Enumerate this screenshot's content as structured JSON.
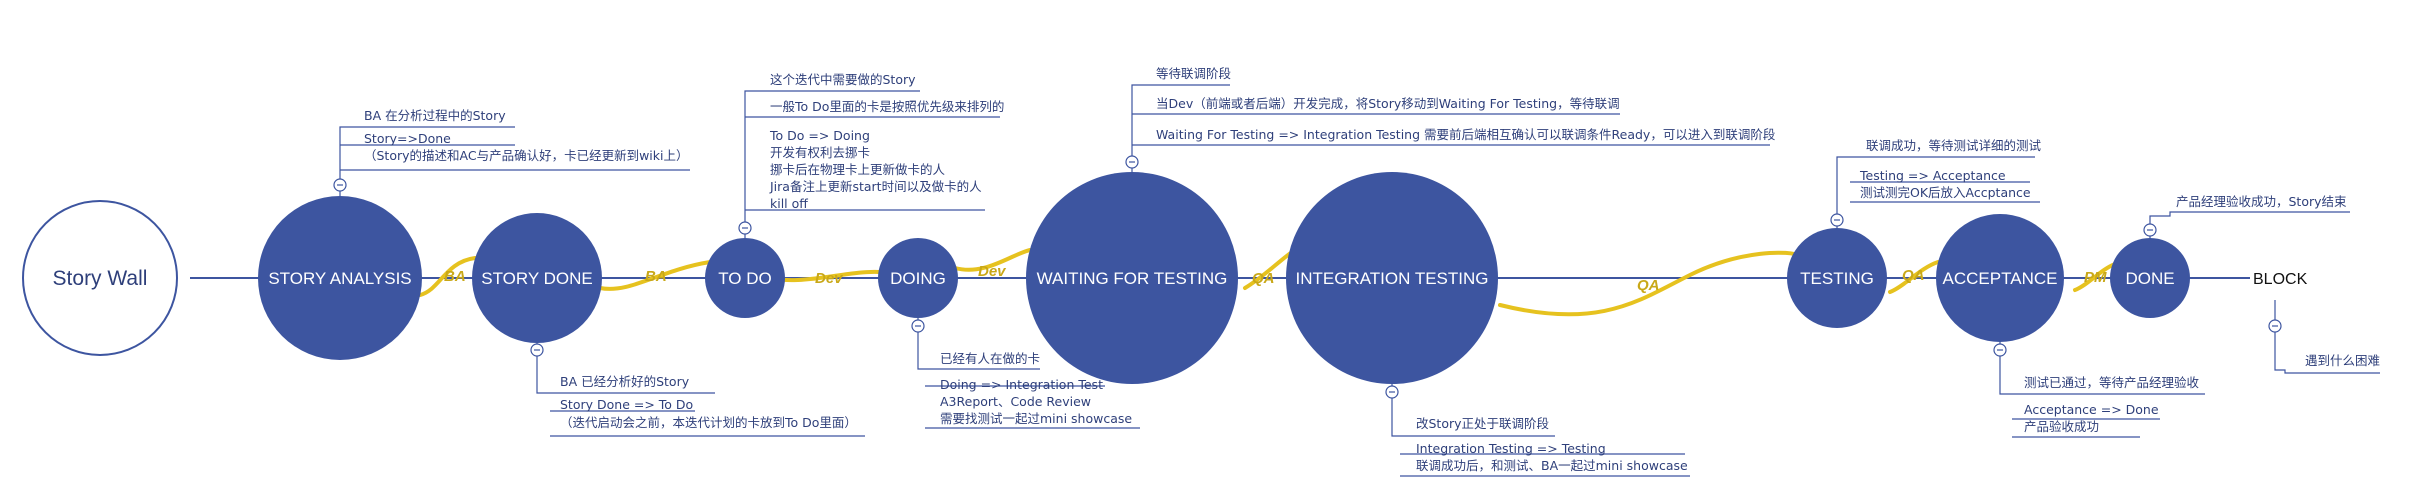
{
  "colors": {
    "node_fill": "#3d55a0",
    "line": "#3d55a0",
    "wave": "#e6c21f",
    "text": "#2e3f7a",
    "wave_label": "#c9a818"
  },
  "root": {
    "label": "Story Wall"
  },
  "nodes": [
    {
      "id": "story-analysis",
      "label": "STORY ANALYSIS"
    },
    {
      "id": "story-done",
      "label": "STORY DONE"
    },
    {
      "id": "to-do",
      "label": "TO DO"
    },
    {
      "id": "doing",
      "label": "DOING"
    },
    {
      "id": "waiting-for-testing",
      "label": "WAITING FOR TESTING"
    },
    {
      "id": "integration-testing",
      "label": "INTEGRATION TESTING"
    },
    {
      "id": "testing",
      "label": "TESTING"
    },
    {
      "id": "acceptance",
      "label": "ACCEPTANCE"
    },
    {
      "id": "done",
      "label": "DONE"
    },
    {
      "id": "block",
      "label": "BLOCK"
    }
  ],
  "connectors": [
    {
      "label": "BA"
    },
    {
      "label": "BA"
    },
    {
      "label": "Dev"
    },
    {
      "label": "Dev"
    },
    {
      "label": "QA"
    },
    {
      "label": "QA"
    },
    {
      "label": "QA"
    },
    {
      "label": "PM"
    }
  ],
  "notes": [
    {
      "id": "story-analysis-note",
      "lines": [
        "BA 在分析过程中的Story",
        "Story=>Done",
        "（Story的描述和AC与产品确认好，卡已经更新到wiki上）"
      ]
    },
    {
      "id": "story-done-note",
      "lines": [
        "BA 已经分析好的Story",
        "Story Done => To Do",
        "（迭代启动会之前，本迭代计划的卡放到To Do里面）"
      ]
    },
    {
      "id": "to-do-note",
      "lines": [
        "这个迭代中需要做的Story",
        "一般To Do里面的卡是按照优先级来排列的",
        "To Do => Doing",
        "开发有权利去挪卡",
        "挪卡后在物理卡上更新做卡的人",
        "Jira备注上更新start时间以及做卡的人",
        "kill off"
      ]
    },
    {
      "id": "doing-note",
      "lines": [
        "已经有人在做的卡",
        "Doing => Integration Test",
        "A3Report、Code Review",
        "需要找测试一起过mini showcase"
      ]
    },
    {
      "id": "waiting-note",
      "lines": [
        "等待联调阶段",
        "当Dev（前端或者后端）开发完成，将Story移动到Waiting For Testing，等待联调",
        "Waiting For Testing => Integration Testing 需要前后端相互确认可以联调条件Ready，可以进入到联调阶段"
      ]
    },
    {
      "id": "integration-note",
      "lines": [
        "改Story正处于联调阶段",
        "Integration Testing => Testing",
        "联调成功后，和测试、BA一起过mini showcase"
      ]
    },
    {
      "id": "testing-note",
      "lines": [
        "联调成功，等待测试详细的测试",
        "Testing => Acceptance",
        "测试测完OK后放入Accptance"
      ]
    },
    {
      "id": "acceptance-note",
      "lines": [
        "测试已通过，等待产品经理验收",
        "Acceptance => Done",
        "产品验收成功"
      ]
    },
    {
      "id": "done-note",
      "lines": [
        "产品经理验收成功，Story结束"
      ]
    },
    {
      "id": "block-note",
      "lines": [
        "遇到什么困难"
      ]
    }
  ]
}
